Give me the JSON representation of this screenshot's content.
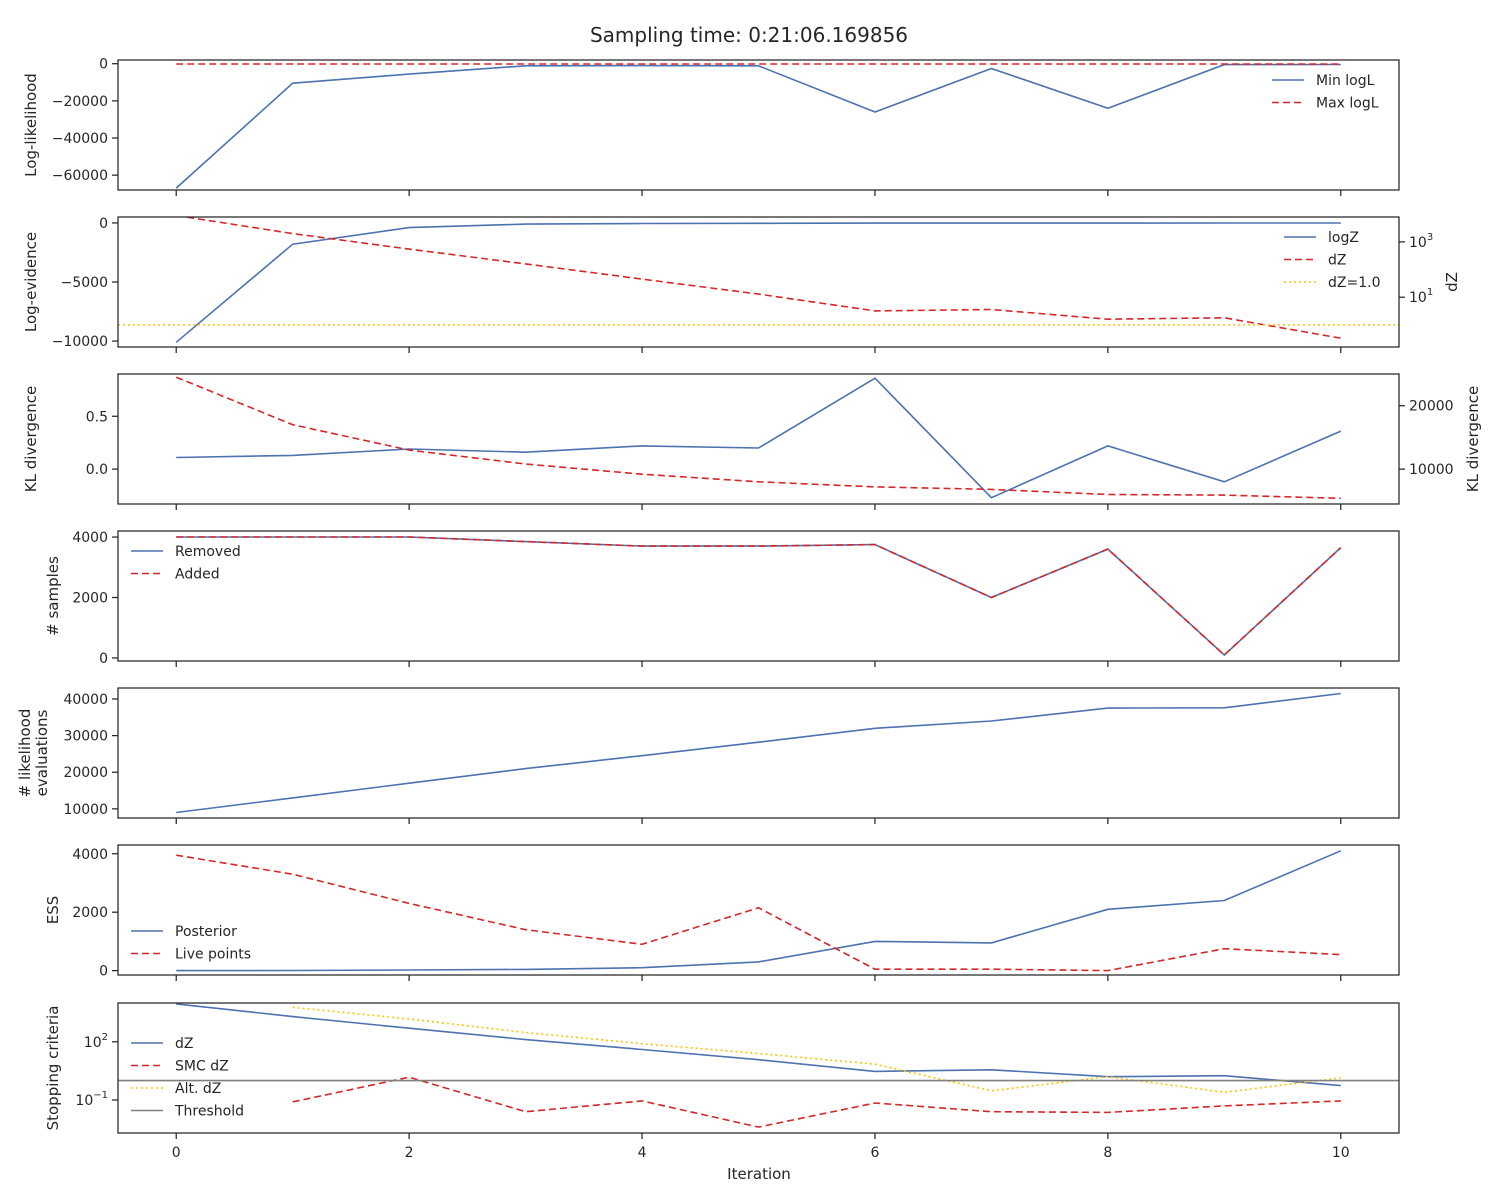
{
  "figure": {
    "title": "Sampling time: 0:21:06.169856",
    "xlabel": "Iteration"
  },
  "colors": {
    "blue": "#4c72b0",
    "red": "#d62728",
    "gold": "#ffc200",
    "gray": "#808080"
  },
  "chart_data": [
    {
      "type": "line",
      "ylabel": "Log-likelihood",
      "ylim": [
        -68000,
        2000
      ],
      "xlim": [
        -0.5,
        10.5
      ],
      "xticks": [
        0,
        2,
        4,
        6,
        8,
        10
      ],
      "yticks": [
        0,
        -20000,
        -40000,
        -60000
      ],
      "yticklabels": [
        "0",
        "−20000",
        "−40000",
        "−60000"
      ],
      "legend_position": "top-right",
      "series": [
        {
          "name": "Min logL",
          "style": "solid",
          "color": "blue",
          "x": [
            0,
            1,
            2,
            3,
            4,
            5,
            6,
            7,
            8,
            9,
            10
          ],
          "y": [
            -67000,
            -10500,
            -5600,
            -1100,
            -1000,
            -1100,
            -26000,
            -2600,
            -24000,
            -500,
            -400
          ]
        },
        {
          "name": "Max logL",
          "style": "dashed",
          "color": "red",
          "x": [
            0,
            1,
            2,
            3,
            4,
            5,
            6,
            7,
            8,
            9,
            10
          ],
          "y": [
            -150,
            -150,
            -150,
            -150,
            -150,
            -150,
            -150,
            -150,
            -150,
            -150,
            -150
          ]
        }
      ]
    },
    {
      "type": "line",
      "ylabel": "Log-evidence",
      "ylabel_right": "dZ",
      "ylim": [
        -10500,
        500
      ],
      "xlim": [
        -0.5,
        10.5
      ],
      "yticks": [
        0,
        -5000,
        -10000
      ],
      "yticklabels": [
        "0",
        "−5000",
        "−10000"
      ],
      "y2_log": true,
      "y2lim_log10": [
        -0.8,
        3.9
      ],
      "y2ticks_exp": [
        1,
        3
      ],
      "legend_position": "top-right",
      "series": [
        {
          "name": "logZ",
          "style": "solid",
          "color": "blue",
          "axis": "left",
          "x": [
            0,
            1,
            2,
            3,
            4,
            5,
            6,
            7,
            8,
            9,
            10
          ],
          "y": [
            -10100,
            -1800,
            -400,
            -100,
            -50,
            -30,
            -20,
            -15,
            -12,
            -10,
            -8
          ]
        },
        {
          "name": "dZ",
          "style": "dashed",
          "color": "red",
          "axis": "right",
          "x": [
            0,
            1,
            2,
            3,
            4,
            5,
            6,
            7,
            8,
            9,
            10
          ],
          "y": [
            9000,
            2000,
            550,
            160,
            45,
            13,
            3.2,
            3.6,
            1.6,
            1.8,
            0.33
          ]
        },
        {
          "name": "dZ=1.0",
          "style": "dotted",
          "color": "gold",
          "axis": "right",
          "hline": 1.0
        }
      ]
    },
    {
      "type": "line",
      "ylabel": "KL divergence",
      "ylabel_right": "KL divergence",
      "ylim": [
        -0.33,
        0.9
      ],
      "xlim": [
        -0.5,
        10.5
      ],
      "yticks": [
        0.5,
        0.0,
        -0.5
      ],
      "yticklabels": [
        "0.5",
        "0.0",
        "−0.5"
      ],
      "y2lim": [
        4500,
        25000
      ],
      "y2ticks": [
        10000,
        20000
      ],
      "y2ticklabels": [
        "10000",
        "20000"
      ],
      "series": [
        {
          "style": "solid",
          "color": "blue",
          "axis": "left",
          "x": [
            0,
            1,
            2,
            3,
            4,
            5,
            6,
            7,
            8,
            9,
            10
          ],
          "y": [
            0.11,
            0.13,
            0.19,
            0.16,
            0.22,
            0.2,
            0.86,
            -0.27,
            0.22,
            -0.12,
            0.36
          ]
        },
        {
          "style": "dashed",
          "color": "red",
          "axis": "right",
          "x": [
            0,
            1,
            2,
            3,
            4,
            5,
            6,
            7,
            8,
            9,
            10
          ],
          "y": [
            24500,
            17000,
            13000,
            10800,
            9200,
            8000,
            7200,
            6800,
            6000,
            5900,
            5400
          ]
        }
      ]
    },
    {
      "type": "line",
      "ylabel": "# samples",
      "ylim": [
        -100,
        4200
      ],
      "xlim": [
        -0.5,
        10.5
      ],
      "yticks": [
        0,
        2000,
        4000
      ],
      "yticklabels": [
        "0",
        "2000",
        "4000"
      ],
      "legend_position": "top-left",
      "series": [
        {
          "name": "Removed",
          "style": "solid",
          "color": "blue",
          "x": [
            0,
            1,
            2,
            3,
            4,
            5,
            6,
            7,
            8,
            9,
            10
          ],
          "y": [
            4000,
            4000,
            4000,
            3850,
            3700,
            3700,
            3750,
            2000,
            3600,
            100,
            3650
          ]
        },
        {
          "name": "Added",
          "style": "dashed",
          "color": "red",
          "x": [
            0,
            1,
            2,
            3,
            4,
            5,
            6,
            7,
            8,
            9,
            10
          ],
          "y": [
            4000,
            4000,
            4000,
            3850,
            3700,
            3700,
            3750,
            2000,
            3600,
            100,
            3650
          ]
        }
      ]
    },
    {
      "type": "line",
      "ylabel": [
        "# likelihood",
        "evaluations"
      ],
      "ylim": [
        7500,
        43000
      ],
      "xlim": [
        -0.5,
        10.5
      ],
      "yticks": [
        10000,
        20000,
        30000,
        40000
      ],
      "yticklabels": [
        "10000",
        "20000",
        "30000",
        "40000"
      ],
      "series": [
        {
          "style": "solid",
          "color": "blue",
          "x": [
            0,
            1,
            2,
            3,
            4,
            5,
            6,
            7,
            8,
            9,
            10
          ],
          "y": [
            9000,
            13000,
            17000,
            21000,
            24500,
            28200,
            32000,
            34000,
            37500,
            37600,
            41500
          ]
        }
      ]
    },
    {
      "type": "line",
      "ylabel": "ESS",
      "ylim": [
        -150,
        4300
      ],
      "xlim": [
        -0.5,
        10.5
      ],
      "yticks": [
        0,
        2000,
        4000
      ],
      "yticklabels": [
        "0",
        "2000",
        "4000"
      ],
      "legend_position": "bottom-left",
      "series": [
        {
          "name": "Posterior",
          "style": "solid",
          "color": "blue",
          "x": [
            0,
            1,
            2,
            3,
            4,
            5,
            6,
            7,
            8,
            9,
            10
          ],
          "y": [
            0,
            5,
            20,
            40,
            100,
            300,
            1000,
            950,
            2100,
            2400,
            4100
          ]
        },
        {
          "name": "Live points",
          "style": "dashed",
          "color": "red",
          "x": [
            0,
            1,
            2,
            3,
            4,
            5,
            6,
            7,
            8,
            9,
            10
          ],
          "y": [
            3950,
            3300,
            2300,
            1400,
            900,
            2150,
            50,
            50,
            0,
            750,
            550
          ]
        }
      ]
    },
    {
      "type": "line",
      "ylabel": "Stopping criteria",
      "ylog": true,
      "ylim_log10": [
        -2.7,
        4.0
      ],
      "xlim": [
        -0.5,
        10.5
      ],
      "yticks_exp": [
        2,
        -1
      ],
      "legend_position": "left",
      "series": [
        {
          "name": "dZ",
          "style": "solid",
          "color": "blue",
          "x": [
            0,
            1,
            2,
            3,
            4,
            5,
            6,
            7,
            8,
            9,
            10
          ],
          "y": [
            9000,
            2000,
            500,
            130,
            40,
            12,
            3.0,
            3.6,
            1.6,
            1.8,
            0.55
          ]
        },
        {
          "name": "SMC dZ",
          "style": "dashed",
          "color": "red",
          "x": [
            1,
            2,
            3,
            4,
            5,
            6,
            7,
            8,
            9,
            10
          ],
          "y": [
            0.08,
            1.5,
            0.025,
            0.09,
            0.004,
            0.07,
            0.025,
            0.023,
            0.05,
            0.09
          ]
        },
        {
          "name": "Alt. dZ",
          "style": "dotted",
          "color": "gold",
          "x": [
            1,
            2,
            3,
            4,
            5,
            6,
            7,
            8,
            9,
            10
          ],
          "y": [
            6000,
            1500,
            300,
            80,
            25,
            7,
            0.3,
            1.6,
            0.25,
            1.4
          ]
        },
        {
          "name": "Threshold",
          "style": "solid",
          "color": "gray",
          "hline": 1.0
        }
      ]
    }
  ]
}
